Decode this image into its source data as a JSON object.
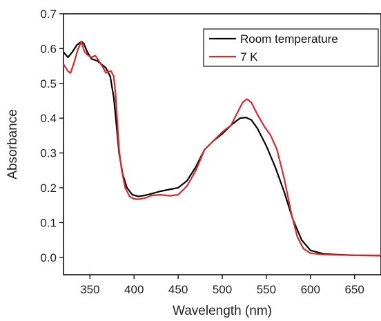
{
  "chart_data": {
    "type": "line",
    "title": "",
    "xlabel": "Wavelength (nm)",
    "ylabel": "Absorbance",
    "xlim": [
      320,
      680
    ],
    "ylim": [
      -0.05,
      0.7
    ],
    "x_ticks": [
      350,
      400,
      450,
      500,
      550,
      600,
      650
    ],
    "x_tick_labels": [
      "350",
      "400",
      "450",
      "500",
      "550",
      "600",
      "650"
    ],
    "y_ticks": [
      0.0,
      0.1,
      0.2,
      0.3,
      0.4,
      0.5,
      0.6,
      0.7
    ],
    "y_tick_labels": [
      "0.0",
      "0.1",
      "0.2",
      "0.3",
      "0.4",
      "0.5",
      "0.6",
      "0.7"
    ],
    "grid": false,
    "legend_position": "top-right",
    "series": [
      {
        "name": "Room temperature",
        "color": "#000000",
        "points": [
          [
            320,
            0.59
          ],
          [
            325,
            0.575
          ],
          [
            330,
            0.59
          ],
          [
            335,
            0.61
          ],
          [
            340,
            0.62
          ],
          [
            343,
            0.615
          ],
          [
            347,
            0.59
          ],
          [
            352,
            0.57
          ],
          [
            358,
            0.565
          ],
          [
            363,
            0.555
          ],
          [
            368,
            0.545
          ],
          [
            373,
            0.52
          ],
          [
            377,
            0.46
          ],
          [
            380,
            0.38
          ],
          [
            383,
            0.3
          ],
          [
            387,
            0.24
          ],
          [
            392,
            0.2
          ],
          [
            398,
            0.18
          ],
          [
            405,
            0.175
          ],
          [
            412,
            0.178
          ],
          [
            420,
            0.183
          ],
          [
            430,
            0.19
          ],
          [
            440,
            0.195
          ],
          [
            450,
            0.2
          ],
          [
            460,
            0.22
          ],
          [
            470,
            0.26
          ],
          [
            480,
            0.31
          ],
          [
            490,
            0.335
          ],
          [
            500,
            0.355
          ],
          [
            510,
            0.38
          ],
          [
            520,
            0.4
          ],
          [
            527,
            0.402
          ],
          [
            533,
            0.395
          ],
          [
            540,
            0.37
          ],
          [
            550,
            0.32
          ],
          [
            560,
            0.26
          ],
          [
            570,
            0.19
          ],
          [
            580,
            0.11
          ],
          [
            590,
            0.05
          ],
          [
            600,
            0.02
          ],
          [
            615,
            0.01
          ],
          [
            630,
            0.008
          ],
          [
            650,
            0.006
          ],
          [
            680,
            0.005
          ]
        ]
      },
      {
        "name": "7 K",
        "color": "#e0262b",
        "points": [
          [
            320,
            0.555
          ],
          [
            325,
            0.535
          ],
          [
            328,
            0.53
          ],
          [
            332,
            0.56
          ],
          [
            336,
            0.595
          ],
          [
            340,
            0.62
          ],
          [
            344,
            0.59
          ],
          [
            348,
            0.58
          ],
          [
            352,
            0.575
          ],
          [
            356,
            0.58
          ],
          [
            360,
            0.565
          ],
          [
            365,
            0.545
          ],
          [
            368,
            0.53
          ],
          [
            371,
            0.535
          ],
          [
            374,
            0.535
          ],
          [
            377,
            0.52
          ],
          [
            379,
            0.47
          ],
          [
            381,
            0.39
          ],
          [
            383,
            0.31
          ],
          [
            386,
            0.25
          ],
          [
            390,
            0.2
          ],
          [
            395,
            0.175
          ],
          [
            400,
            0.168
          ],
          [
            405,
            0.167
          ],
          [
            412,
            0.17
          ],
          [
            420,
            0.178
          ],
          [
            430,
            0.18
          ],
          [
            440,
            0.177
          ],
          [
            450,
            0.18
          ],
          [
            460,
            0.205
          ],
          [
            470,
            0.25
          ],
          [
            480,
            0.31
          ],
          [
            490,
            0.335
          ],
          [
            500,
            0.36
          ],
          [
            510,
            0.38
          ],
          [
            518,
            0.42
          ],
          [
            523,
            0.445
          ],
          [
            528,
            0.455
          ],
          [
            533,
            0.445
          ],
          [
            540,
            0.41
          ],
          [
            548,
            0.375
          ],
          [
            555,
            0.35
          ],
          [
            562,
            0.31
          ],
          [
            570,
            0.23
          ],
          [
            578,
            0.13
          ],
          [
            585,
            0.06
          ],
          [
            592,
            0.025
          ],
          [
            600,
            0.012
          ],
          [
            615,
            0.008
          ],
          [
            630,
            0.007
          ],
          [
            650,
            0.006
          ],
          [
            680,
            0.006
          ]
        ]
      }
    ]
  }
}
